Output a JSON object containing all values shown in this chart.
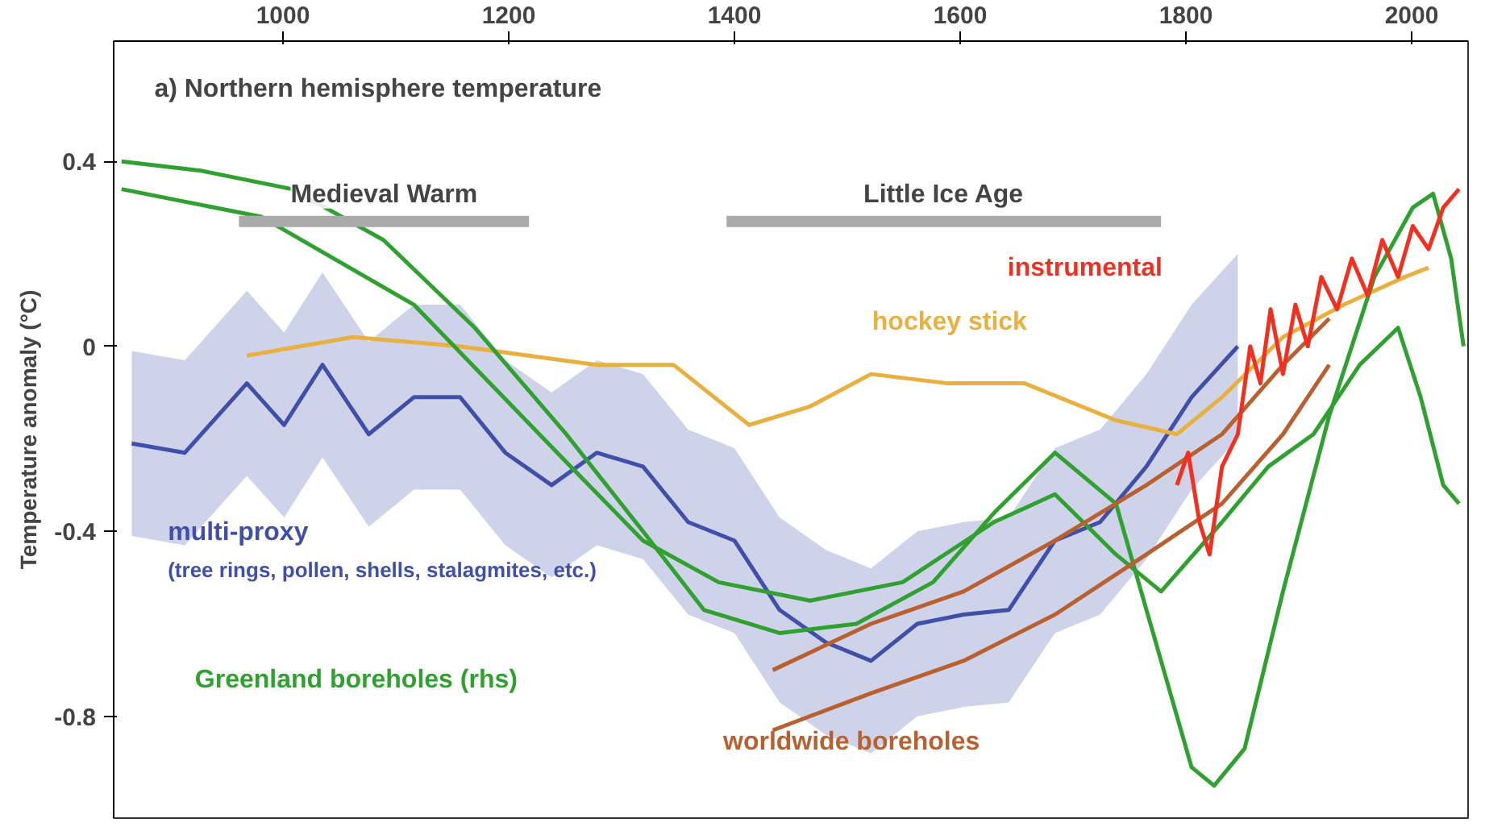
{
  "chart_data": {
    "type": "line",
    "title": "a) Northern hemisphere temperature",
    "ylabel": "Temperature anomaly (°C)",
    "xlim": [
      850,
      2050
    ],
    "ylim": [
      -1.02,
      0.66
    ],
    "xticks": [
      1000,
      1200,
      1400,
      1600,
      1800,
      2000
    ],
    "yticks": [
      {
        "value": 0.4,
        "label": "0.4"
      },
      {
        "value": 0,
        "label": "0"
      },
      {
        "value": -0.4,
        "label": "-0.4"
      },
      {
        "value": -0.8,
        "label": "-0.8"
      }
    ],
    "grid": false,
    "series": [
      {
        "name": "multi-proxy",
        "color": "#4050a8",
        "x": [
          866,
          913,
          968,
          1001,
          1035,
          1076,
          1116,
          1157,
          1197,
          1238,
          1278,
          1319,
          1359,
          1400,
          1440,
          1481,
          1521,
          1562,
          1603,
          1643,
          1684,
          1724,
          1765,
          1805,
          1846
        ],
        "values": [
          -0.21,
          -0.23,
          -0.08,
          -0.17,
          -0.04,
          -0.19,
          -0.11,
          -0.11,
          -0.23,
          -0.3,
          -0.23,
          -0.26,
          -0.38,
          -0.42,
          -0.57,
          -0.64,
          -0.68,
          -0.6,
          -0.58,
          -0.57,
          -0.42,
          -0.38,
          -0.26,
          -0.11,
          0
        ],
        "lower": [
          -0.41,
          -0.43,
          -0.28,
          -0.37,
          -0.24,
          -0.39,
          -0.31,
          -0.31,
          -0.43,
          -0.5,
          -0.43,
          -0.46,
          -0.58,
          -0.62,
          -0.77,
          -0.84,
          -0.88,
          -0.8,
          -0.78,
          -0.77,
          -0.62,
          -0.58,
          -0.46,
          -0.31,
          -0.2
        ],
        "upper": [
          -0.01,
          -0.03,
          0.12,
          0.03,
          0.16,
          0.01,
          0.09,
          0.09,
          -0.03,
          -0.1,
          -0.03,
          -0.06,
          -0.18,
          -0.22,
          -0.37,
          -0.44,
          -0.48,
          -0.4,
          -0.38,
          -0.37,
          -0.22,
          -0.18,
          -0.06,
          0.09,
          0.2
        ]
      },
      {
        "name": "hockey stick",
        "color": "#e8b040",
        "x": [
          968,
          1062,
          1157,
          1278,
          1346,
          1413,
          1467,
          1521,
          1589,
          1657,
          1738,
          1792,
          1832,
          1886,
          1940,
          1994,
          2015
        ],
        "values": [
          -0.02,
          0.02,
          0,
          -0.04,
          -0.04,
          -0.17,
          -0.13,
          -0.06,
          -0.08,
          -0.08,
          -0.16,
          -0.19,
          -0.11,
          0.02,
          0.09,
          0.15,
          0.17
        ]
      },
      {
        "name": "Greenland boreholes (rhs)",
        "color": "#30a030",
        "x": [
          857,
          927,
          1008,
          1089,
          1170,
          1251,
          1319,
          1373,
          1440,
          1508,
          1576,
          1630,
          1684,
          1738,
          1778,
          1805,
          1825,
          1852,
          1886,
          1927,
          1967,
          2001,
          2019,
          2035,
          2046
        ],
        "values": [
          0.4,
          0.38,
          0.34,
          0.23,
          0.04,
          -0.19,
          -0.4,
          -0.57,
          -0.62,
          -0.6,
          -0.51,
          -0.36,
          -0.23,
          -0.34,
          -0.68,
          -0.91,
          -0.95,
          -0.87,
          -0.53,
          -0.15,
          0.15,
          0.3,
          0.33,
          0.19,
          0
        ]
      },
      {
        "color": "#30a030",
        "x": [
          857,
          981,
          1116,
          1251,
          1319,
          1386,
          1467,
          1549,
          1630,
          1684,
          1738,
          1778,
          1832,
          1873,
          1913,
          1954,
          1988,
          2008,
          2028,
          2042
        ],
        "values": [
          0.34,
          0.28,
          0.09,
          -0.25,
          -0.42,
          -0.51,
          -0.55,
          -0.51,
          -0.38,
          -0.32,
          -0.45,
          -0.53,
          -0.38,
          -0.26,
          -0.19,
          -0.04,
          0.04,
          -0.11,
          -0.3,
          -0.34
        ]
      },
      {
        "name": "worldwide boreholes",
        "color": "#b86030",
        "x": [
          1434,
          1521,
          1603,
          1684,
          1765,
          1832,
          1886,
          1927
        ],
        "values": [
          -0.7,
          -0.6,
          -0.53,
          -0.42,
          -0.3,
          -0.19,
          -0.04,
          0.06
        ]
      },
      {
        "color": "#b86030",
        "x": [
          1434,
          1521,
          1603,
          1684,
          1765,
          1832,
          1886,
          1927
        ],
        "values": [
          -0.83,
          -0.75,
          -0.68,
          -0.58,
          -0.45,
          -0.34,
          -0.19,
          -0.04
        ]
      },
      {
        "name": "instrumental",
        "color": "#f03020",
        "x": [
          1792,
          1802,
          1812,
          1821,
          1832,
          1846,
          1857,
          1866,
          1875,
          1886,
          1897,
          1908,
          1920,
          1934,
          1947,
          1961,
          1974,
          1988,
          2001,
          2015,
          2028,
          2042
        ],
        "values": [
          -0.3,
          -0.23,
          -0.38,
          -0.45,
          -0.26,
          -0.19,
          0,
          -0.08,
          0.08,
          -0.06,
          0.09,
          0,
          0.15,
          0.08,
          0.19,
          0.11,
          0.23,
          0.15,
          0.26,
          0.21,
          0.3,
          0.34
        ]
      },
      {
        "name": "Medieval Warm",
        "color": "#aaaaaa",
        "x": [
          961,
          1218
        ],
        "values": [
          0.27,
          0.27
        ]
      },
      {
        "name": "Little Ice Age",
        "color": "#aaaaaa",
        "x": [
          1393,
          1778
        ],
        "values": [
          0.27,
          0.27
        ]
      }
    ],
    "annotations": [
      "(tree rings, pollen, shells, stalagmites, etc.)"
    ]
  }
}
